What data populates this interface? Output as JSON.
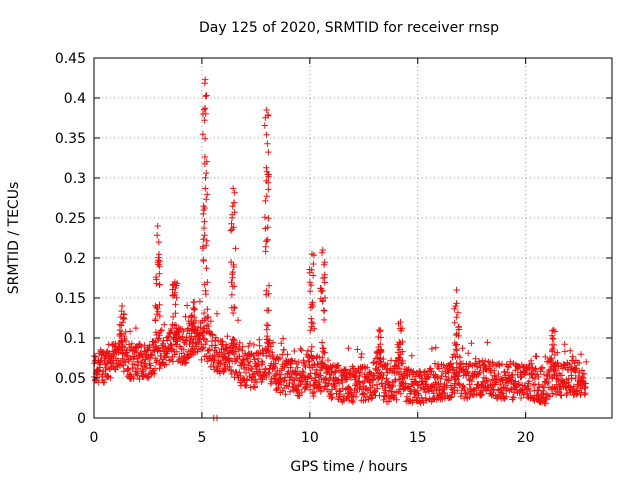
{
  "chart_data": {
    "type": "scatter",
    "title": "Day 125 of 2020, SRMTID for receiver rnsp",
    "xlabel": "GPS time / hours",
    "ylabel": "SRMTID / TECUs",
    "xlim": [
      0,
      24
    ],
    "ylim": [
      0,
      0.45
    ],
    "xticks": [
      0,
      5,
      10,
      15,
      20
    ],
    "xtick_labels": [
      "0",
      "5",
      "10",
      "15",
      "20"
    ],
    "yticks": [
      0,
      0.05,
      0.1,
      0.15,
      0.2,
      0.25,
      0.3,
      0.35,
      0.4,
      0.45
    ],
    "ytick_labels": [
      "0",
      "0.05",
      "0.1",
      "0.15",
      "0.2",
      "0.25",
      "0.3",
      "0.35",
      "0.4",
      "0.45"
    ],
    "grid": true,
    "marker": "plus",
    "color": "#ee1111",
    "series": [
      {
        "name": "SRMTID",
        "x_range": [
          0,
          22.8
        ],
        "baseline_envelope": [
          [
            0.0,
            0.06
          ],
          [
            1.0,
            0.075
          ],
          [
            2.0,
            0.07
          ],
          [
            3.0,
            0.075
          ],
          [
            4.0,
            0.09
          ],
          [
            5.0,
            0.09
          ],
          [
            6.0,
            0.075
          ],
          [
            7.0,
            0.06
          ],
          [
            8.0,
            0.06
          ],
          [
            9.0,
            0.05
          ],
          [
            10.0,
            0.05
          ],
          [
            11.0,
            0.045
          ],
          [
            12.0,
            0.04
          ],
          [
            13.0,
            0.045
          ],
          [
            14.0,
            0.04
          ],
          [
            15.0,
            0.04
          ],
          [
            16.0,
            0.045
          ],
          [
            17.0,
            0.045
          ],
          [
            18.0,
            0.05
          ],
          [
            19.0,
            0.045
          ],
          [
            20.0,
            0.045
          ],
          [
            21.0,
            0.04
          ],
          [
            22.0,
            0.05
          ],
          [
            22.8,
            0.05
          ]
        ],
        "spikes": [
          {
            "x": 1.3,
            "peak": 0.14
          },
          {
            "x": 2.95,
            "peak": 0.24
          },
          {
            "x": 3.75,
            "peak": 0.17
          },
          {
            "x": 4.6,
            "peak": 0.145
          },
          {
            "x": 5.15,
            "peak": 0.423
          },
          {
            "x": 6.45,
            "peak": 0.287
          },
          {
            "x": 8.0,
            "peak": 0.385
          },
          {
            "x": 10.1,
            "peak": 0.205
          },
          {
            "x": 10.6,
            "peak": 0.21
          },
          {
            "x": 13.2,
            "peak": 0.11
          },
          {
            "x": 14.2,
            "peak": 0.12
          },
          {
            "x": 16.8,
            "peak": 0.16
          },
          {
            "x": 21.3,
            "peak": 0.11
          }
        ],
        "isolated_points": [
          {
            "x": 5.55,
            "y": 0.0
          },
          {
            "x": 5.7,
            "y": 0.0
          }
        ]
      }
    ]
  }
}
